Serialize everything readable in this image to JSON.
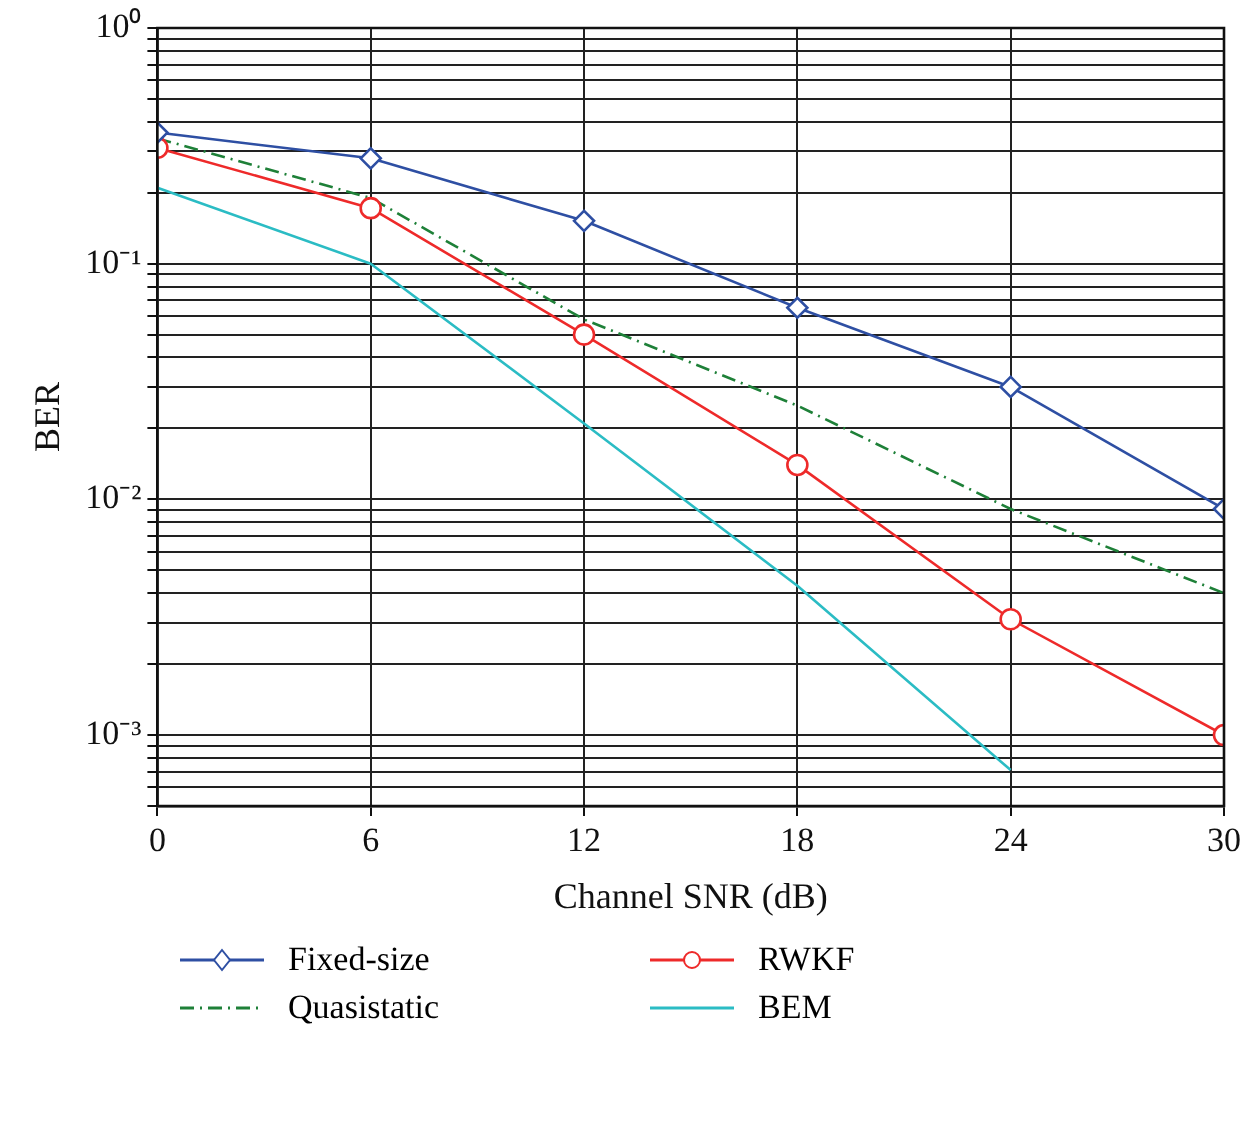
{
  "chart_data": {
    "type": "line",
    "xlabel": "Channel SNR (dB)",
    "ylabel": "BER",
    "log": "y",
    "grid": true,
    "legend": "bottom",
    "xlim": [
      0,
      30
    ],
    "xticks": [
      0,
      6,
      12,
      18,
      24,
      30
    ],
    "ylim": [
      0.0005,
      1
    ],
    "yticks": [
      {
        "value": 0.0005,
        "label": null
      },
      {
        "value": 0.0006,
        "label": null
      },
      {
        "value": 0.0007,
        "label": null
      },
      {
        "value": 0.0008,
        "label": null
      },
      {
        "value": 0.0009,
        "label": null
      },
      {
        "value": 0.001,
        "label": "10⁻³"
      },
      {
        "value": 0.002,
        "label": null
      },
      {
        "value": 0.003,
        "label": null
      },
      {
        "value": 0.004,
        "label": null
      },
      {
        "value": 0.005,
        "label": null
      },
      {
        "value": 0.006,
        "label": null
      },
      {
        "value": 0.007,
        "label": null
      },
      {
        "value": 0.008,
        "label": null
      },
      {
        "value": 0.009,
        "label": null
      },
      {
        "value": 0.01,
        "label": "10⁻²"
      },
      {
        "value": 0.02,
        "label": null
      },
      {
        "value": 0.03,
        "label": null
      },
      {
        "value": 0.04,
        "label": null
      },
      {
        "value": 0.05,
        "label": null
      },
      {
        "value": 0.06,
        "label": null
      },
      {
        "value": 0.07,
        "label": null
      },
      {
        "value": 0.08,
        "label": null
      },
      {
        "value": 0.09,
        "label": null
      },
      {
        "value": 0.1,
        "label": "10⁻¹"
      },
      {
        "value": 0.2,
        "label": null
      },
      {
        "value": 0.3,
        "label": null
      },
      {
        "value": 0.4,
        "label": null
      },
      {
        "value": 0.5,
        "label": null
      },
      {
        "value": 0.6,
        "label": null
      },
      {
        "value": 0.7,
        "label": null
      },
      {
        "value": 0.8,
        "label": null
      },
      {
        "value": 0.9,
        "label": null
      },
      {
        "value": 1,
        "label": "10⁰"
      }
    ],
    "x": [
      0,
      6,
      12,
      18,
      24,
      30
    ],
    "series": [
      {
        "name": "Fixed-size",
        "color": "#2e4fa3",
        "marker": "diamond",
        "line_style": "solid",
        "values": [
          0.36,
          0.28,
          0.152,
          0.065,
          0.03,
          0.0091
        ]
      },
      {
        "name": "RWKF",
        "color": "#ee2a2a",
        "marker": "circle",
        "line_style": "solid",
        "values": [
          0.31,
          0.172,
          0.05,
          0.014,
          0.0031,
          0.001
        ]
      },
      {
        "name": "Quasistatic",
        "color": "#1e8038",
        "marker": "none",
        "line_style": "dashdot",
        "values": [
          0.34,
          0.19,
          0.058,
          0.025,
          0.0091,
          0.004
        ]
      },
      {
        "name": "BEM",
        "color": "#2bbcc4",
        "marker": "none",
        "line_style": "solid",
        "values": [
          0.21,
          0.1,
          0.021,
          0.0043,
          0.00071,
          null
        ]
      }
    ]
  }
}
